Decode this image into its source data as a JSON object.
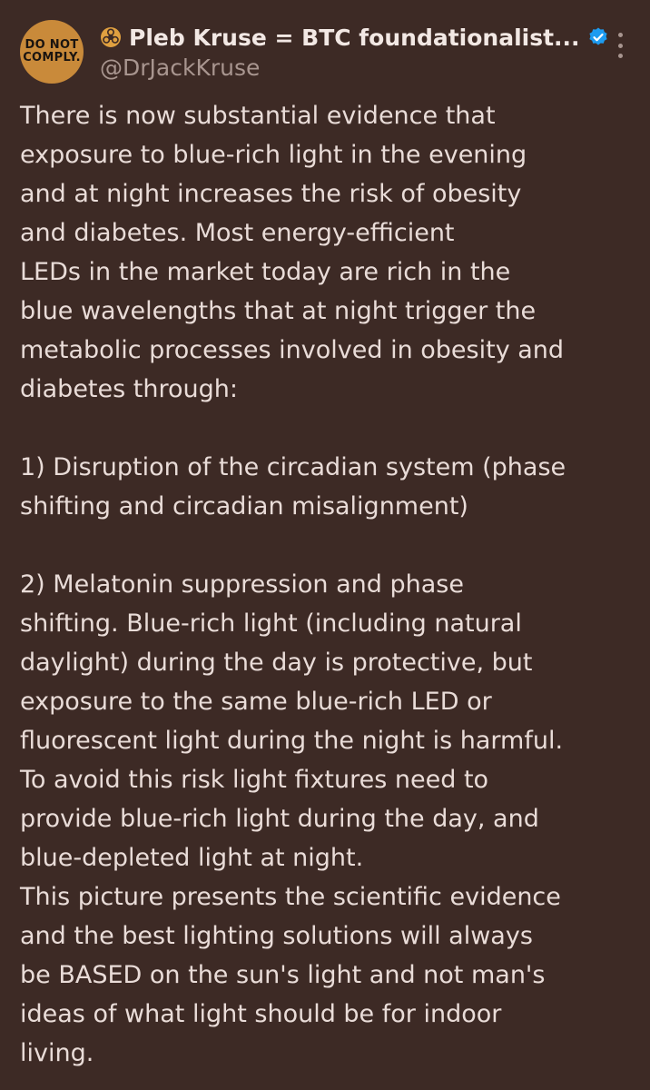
{
  "avatar": {
    "line1": "DO NOT",
    "line2": "COMPLY."
  },
  "author": {
    "display_name": "Pleb Kruse = BTC foundationalist...",
    "handle": "@DrJackKruse",
    "hazard_icon": "biohazard-icon",
    "verified_icon": "verified-badge-icon"
  },
  "colors": {
    "background": "#3d2a25",
    "text": "#e9dcd8",
    "muted": "#a8958f",
    "verified": "#1d9bf0",
    "hazard": "#e0a040"
  },
  "tweet": {
    "para1": "There is now substantial evidence that\nexposure to blue-rich light in the evening\nand at night increases the risk of obesity\nand diabetes. Most energy-efficient\nLEDs in the market today are rich in the\nblue wavelengths that at night trigger the\nmetabolic processes involved in obesity and\ndiabetes through:",
    "para2": "1) Disruption of the circadian system (phase\nshifting and circadian misalignment)",
    "para3": "2) Melatonin suppression and phase\nshifting.  Blue-rich light (including natural\ndaylight) during the day is protective, but\nexposure to the same blue-rich LED or\nfluorescent light during the night is harmful.\nTo avoid this risk light fixtures need to\nprovide blue-rich light during the day, and\nblue-depleted light at night.\nThis picture presents the scientific evidence\nand the best lighting solutions will always\nbe BASED on the sun's light and not man's\nideas of what light should be for indoor\nliving."
  }
}
